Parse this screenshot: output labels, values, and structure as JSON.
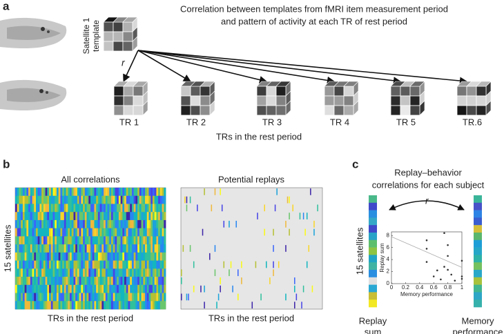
{
  "panel_a": {
    "label": "a",
    "title": [
      "Correlation between templates from fMRI item measurement period",
      "and pattern of activity at each TR of rest period"
    ],
    "template_label": [
      "Satellite 1",
      "template"
    ],
    "r_label": "r",
    "trs": [
      "TR 1",
      "TR 2",
      "TR 3",
      "TR 4",
      "TR 5",
      "TR 6"
    ],
    "ellipsis": "...",
    "x_label": "TRs in the rest period"
  },
  "panel_b": {
    "label": "b",
    "y_label": "15 satellites",
    "left": {
      "title": "All correlations",
      "x_label": "TRs in the rest period"
    },
    "right": {
      "title": "Potential replays",
      "x_label": "TRs in the rest period"
    }
  },
  "panel_c": {
    "label": "c",
    "title": [
      "Replay–behavior",
      "correlations for each subject"
    ],
    "r_label": "r",
    "y_label": "15 satellites",
    "left_bar": {
      "label": [
        "Replay",
        "sum"
      ],
      "colors": [
        "#4ab98a",
        "#3f49c9",
        "#2a8fe0",
        "#35a8c8",
        "#3f49c9",
        "#2aa3c8",
        "#5dbf6e",
        "#8ec443",
        "#22a4c4",
        "#41b3a2",
        "#2a8fe0",
        "#e0e0e0",
        "#2aa8d4",
        "#c9be34",
        "#f2e823"
      ]
    },
    "right_bar": {
      "label": [
        "Memory",
        "performance"
      ],
      "colors": [
        "#3bb59a",
        "#4753c8",
        "#2e84e4",
        "#3a5ed0",
        "#d5bf3a",
        "#5ab76c",
        "#1e9ed6",
        "#26a7c8",
        "#2fb2a7",
        "#74c160",
        "#2aa8c8",
        "#a8c23c",
        "#42b690",
        "#2ea6c6",
        "#37b1ab"
      ]
    },
    "scatter": {
      "type": "scatter",
      "x_label": "Memory performance",
      "y_label": "Replay sum",
      "xlim": [
        0,
        1
      ],
      "ylim": [
        0,
        8.6
      ],
      "xticks": [
        0,
        0.2,
        0.4,
        0.6,
        0.8,
        1
      ],
      "yticks": [
        0,
        2,
        4,
        6,
        8
      ],
      "x": [
        0.5,
        0.5,
        0.5,
        0.6,
        0.65,
        0.7,
        0.75,
        0.75,
        0.8,
        0.8,
        0.8,
        0.85,
        0.9,
        1,
        1,
        1
      ],
      "y": [
        7.2,
        5.8,
        3.6,
        1.2,
        2.2,
        0.7,
        8.4,
        2.8,
        6.4,
        4.6,
        2.3,
        1.5,
        0.5,
        3.8,
        1.2,
        0.8
      ],
      "trend": {
        "x": [
          0,
          1
        ],
        "y": [
          7.8,
          2.7
        ]
      }
    }
  }
}
